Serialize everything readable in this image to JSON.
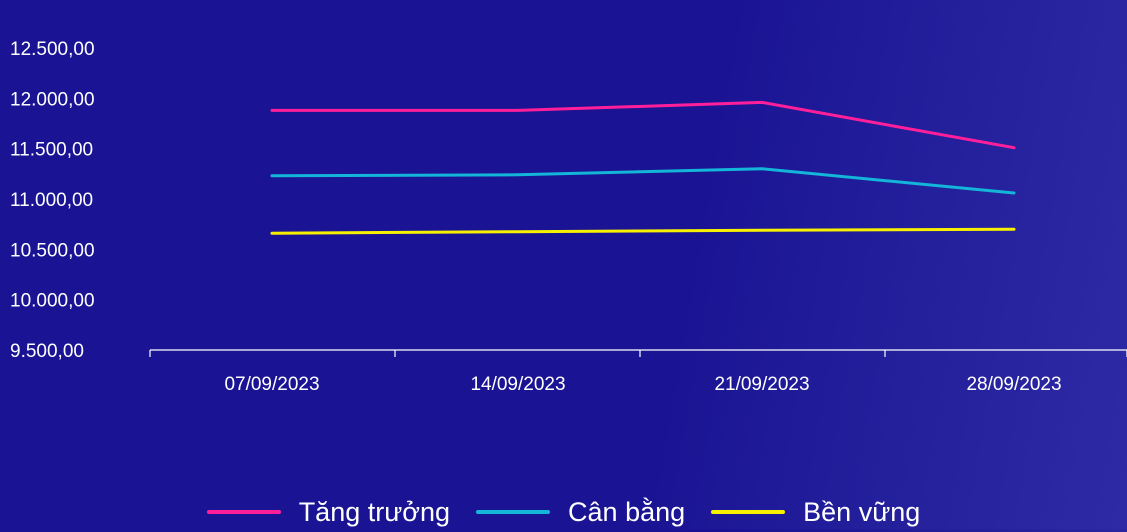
{
  "chart_data": {
    "type": "line",
    "x": [
      "07/09/2023",
      "14/09/2023",
      "21/09/2023",
      "28/09/2023"
    ],
    "series": [
      {
        "name": "Tăng trưởng",
        "color": "#ff1f9a",
        "values": [
          11880,
          11880,
          11960,
          11510
        ]
      },
      {
        "name": "Cân bằng",
        "color": "#13b5d8",
        "values": [
          11230,
          11240,
          11300,
          11060
        ]
      },
      {
        "name": "Bền vững",
        "color": "#f7f000",
        "values": [
          10660,
          10675,
          10690,
          10700
        ]
      }
    ],
    "y_ticks": [
      "9.500,00",
      "10.000,00",
      "10.500,00",
      "11.000,00",
      "11.500,00",
      "12.000,00",
      "12.500,00"
    ],
    "y_tick_values": [
      9500,
      10000,
      10500,
      11000,
      11500,
      12000,
      12500
    ],
    "ylim": [
      9500,
      12500
    ],
    "grid": false,
    "legend_position": "bottom-center",
    "axis_color": "#ffffff"
  }
}
